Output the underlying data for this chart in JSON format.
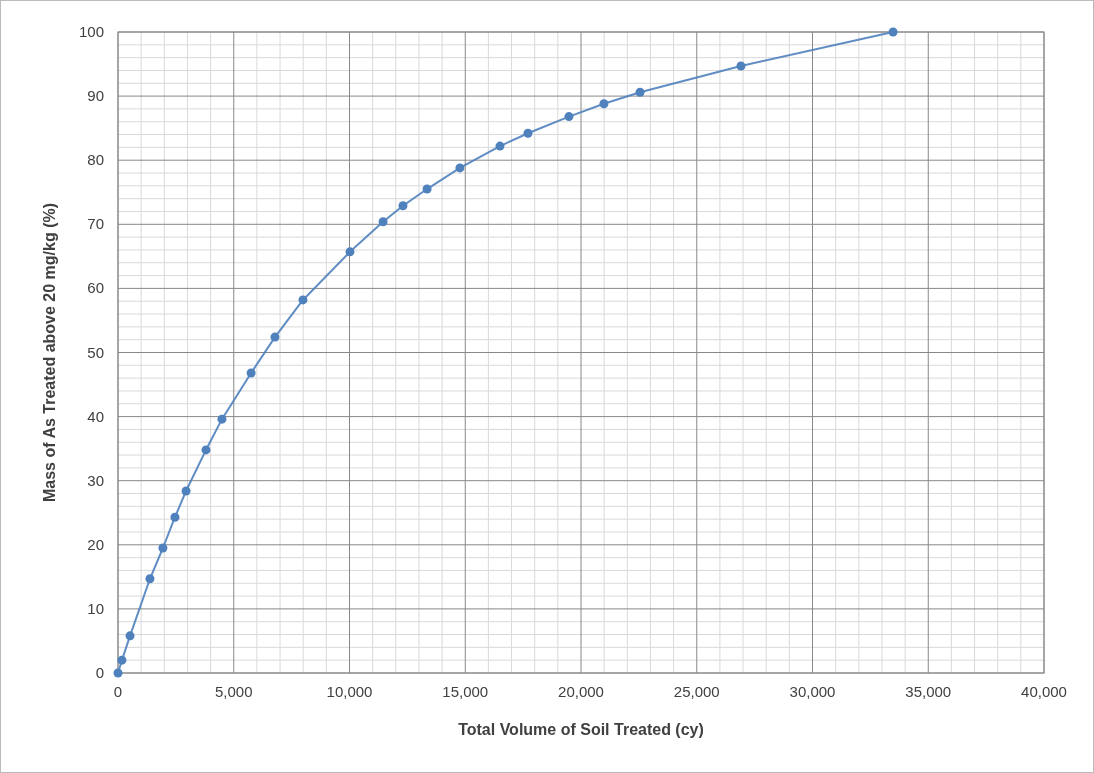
{
  "chart_data": {
    "type": "line",
    "xlabel": "Total Volume of Soil Treated (cy)",
    "ylabel": "Mass of As Treated above 20 mg/kg (%)",
    "x": [
      0,
      170,
      520,
      1380,
      1940,
      2460,
      2940,
      3800,
      4490,
      5750,
      6780,
      7990,
      10020,
      11450,
      12310,
      13350,
      14770,
      16500,
      17710,
      19480,
      20990,
      22550,
      26910,
      33480
    ],
    "series": [
      {
        "color": "#4f81bd",
        "values": [
          0,
          2.0,
          5.8,
          14.7,
          19.5,
          24.3,
          28.4,
          34.8,
          39.6,
          46.8,
          52.4,
          58.2,
          65.7,
          70.4,
          72.9,
          75.5,
          78.8,
          82.2,
          84.2,
          86.8,
          88.8,
          90.6,
          94.7,
          100
        ]
      }
    ],
    "xlim": [
      0,
      40000
    ],
    "xticks": [
      0,
      {
        "value": 5000,
        "label": "5,000"
      },
      {
        "value": 10000,
        "label": "10,000"
      },
      {
        "value": 15000,
        "label": "15,000"
      },
      {
        "value": 20000,
        "label": "20,000"
      },
      {
        "value": 25000,
        "label": "25,000"
      },
      {
        "value": 30000,
        "label": "30,000"
      },
      {
        "value": 35000,
        "label": "35,000"
      },
      {
        "value": 40000,
        "label": "40,000"
      }
    ],
    "ylim": [
      0,
      100
    ],
    "yticks": [
      0,
      10,
      20,
      30,
      40,
      50,
      60,
      70,
      80,
      90,
      100
    ],
    "grid": true,
    "marker": "circle",
    "line_style": "solid"
  }
}
